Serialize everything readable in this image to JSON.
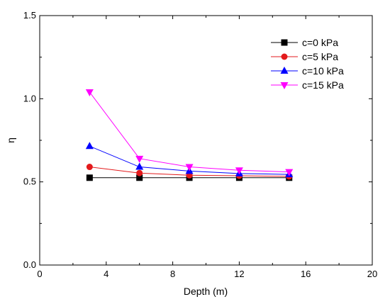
{
  "chart_data": {
    "type": "line",
    "xlabel": "Depth (m)",
    "ylabel": "η",
    "xlim": [
      0,
      20
    ],
    "ylim": [
      0.0,
      1.5
    ],
    "xticks": [
      0,
      4,
      8,
      12,
      16,
      20
    ],
    "xtick_labels": [
      "0",
      "4",
      "8",
      "12",
      "16",
      "20"
    ],
    "yticks": [
      0.0,
      0.5,
      1.0,
      1.5
    ],
    "ytick_labels": [
      "0.0",
      "0.5",
      "1.0",
      "1.5"
    ],
    "grid": false,
    "legend_position": "top-right",
    "x": [
      3,
      6,
      9,
      12,
      15
    ],
    "series": [
      {
        "name": "c=0 kPa",
        "color": "#000000",
        "marker": "square",
        "values": [
          0.525,
          0.525,
          0.525,
          0.525,
          0.525
        ]
      },
      {
        "name": "c=5 kPa",
        "color": "#e31a1c",
        "marker": "circle",
        "values": [
          0.59,
          0.553,
          0.54,
          0.537,
          0.533
        ]
      },
      {
        "name": "c=10 kPa",
        "color": "#0000ff",
        "marker": "triangle-up",
        "values": [
          0.715,
          0.59,
          0.565,
          0.55,
          0.545
        ]
      },
      {
        "name": "c=15 kPa",
        "color": "#ff00ff",
        "marker": "triangle-down",
        "values": [
          1.04,
          0.64,
          0.59,
          0.57,
          0.56
        ]
      }
    ]
  }
}
